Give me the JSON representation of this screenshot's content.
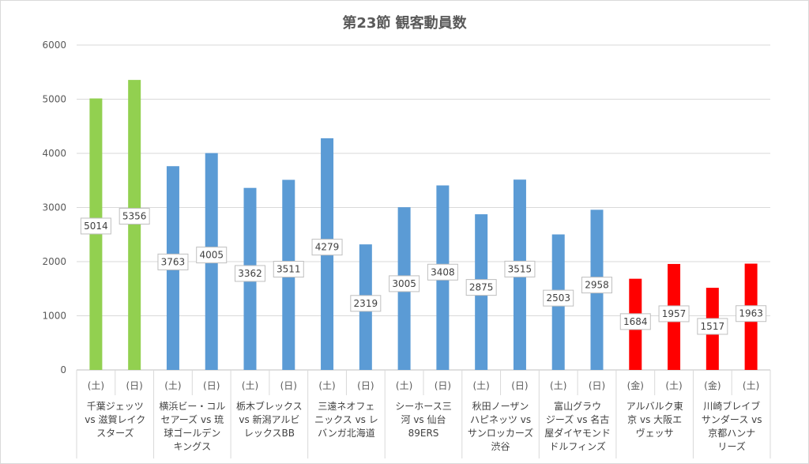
{
  "chart_data": {
    "type": "bar",
    "title": "第23節 観客動員数",
    "xlabel": "",
    "ylabel": "",
    "ylim": [
      0,
      6000
    ],
    "yticks": [
      0,
      1000,
      2000,
      3000,
      4000,
      5000,
      6000
    ],
    "grid": true,
    "legend": "none",
    "bars": [
      {
        "day": "(土)",
        "value": 5014,
        "color": "#92d050"
      },
      {
        "day": "(日)",
        "value": 5356,
        "color": "#92d050"
      },
      {
        "day": "(土)",
        "value": 3763,
        "color": "#5b9bd5"
      },
      {
        "day": "(日)",
        "value": 4005,
        "color": "#5b9bd5"
      },
      {
        "day": "(土)",
        "value": 3362,
        "color": "#5b9bd5"
      },
      {
        "day": "(日)",
        "value": 3511,
        "color": "#5b9bd5"
      },
      {
        "day": "(土)",
        "value": 4279,
        "color": "#5b9bd5"
      },
      {
        "day": "(日)",
        "value": 2319,
        "color": "#5b9bd5"
      },
      {
        "day": "(土)",
        "value": 3005,
        "color": "#5b9bd5"
      },
      {
        "day": "(日)",
        "value": 3408,
        "color": "#5b9bd5"
      },
      {
        "day": "(土)",
        "value": 2875,
        "color": "#5b9bd5"
      },
      {
        "day": "(日)",
        "value": 3515,
        "color": "#5b9bd5"
      },
      {
        "day": "(土)",
        "value": 2503,
        "color": "#5b9bd5"
      },
      {
        "day": "(日)",
        "value": 2958,
        "color": "#5b9bd5"
      },
      {
        "day": "(金)",
        "value": 1684,
        "color": "#ff0000"
      },
      {
        "day": "(土)",
        "value": 1957,
        "color": "#ff0000"
      },
      {
        "day": "(金)",
        "value": 1517,
        "color": "#ff0000"
      },
      {
        "day": "(土)",
        "value": 1963,
        "color": "#ff0000"
      }
    ],
    "matchups": [
      {
        "label_lines": [
          "千葉ジェッツ",
          "vs 滋賀レイク",
          "スターズ"
        ]
      },
      {
        "label_lines": [
          "横浜ビー・コル",
          "セアーズ vs 琉",
          "球ゴールデン",
          "キングス"
        ]
      },
      {
        "label_lines": [
          "栃木ブレックス",
          "vs 新潟アルビ",
          "レックスBB"
        ]
      },
      {
        "label_lines": [
          "三遠ネオフェ",
          "ニックス vs レ",
          "バンガ北海道"
        ]
      },
      {
        "label_lines": [
          "シーホース三",
          "河 vs 仙台",
          "89ERS"
        ]
      },
      {
        "label_lines": [
          "秋田ノーザン",
          "ハピネッツ vs",
          "サンロッカーズ",
          "渋谷"
        ]
      },
      {
        "label_lines": [
          "富山グラウ",
          "ジーズ vs 名古",
          "屋ダイヤモンド",
          "ドルフィンズ"
        ]
      },
      {
        "label_lines": [
          "アルバルク東",
          "京 vs 大阪エ",
          "ヴェッサ"
        ]
      },
      {
        "label_lines": [
          "川崎ブレイブ",
          "サンダース vs",
          "京都ハンナ",
          "リーズ"
        ]
      }
    ]
  }
}
